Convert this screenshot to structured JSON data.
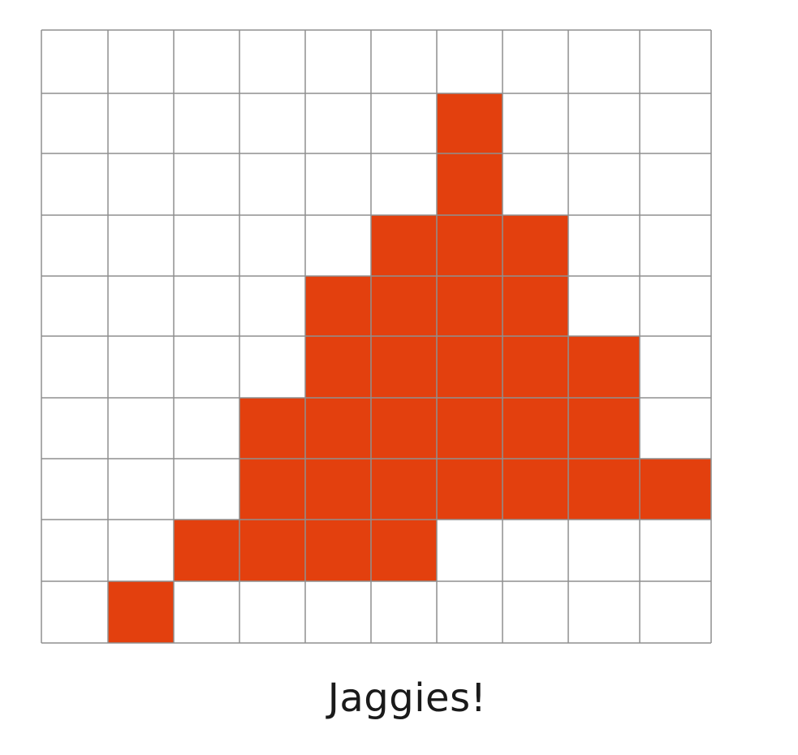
{
  "caption": "Jaggies!",
  "colors": {
    "fill": "#E3400E",
    "grid_line": "#8f8f8f",
    "background": "#ffffff",
    "text": "#1a1a1a"
  },
  "grid": {
    "rows": 10,
    "cols": 10,
    "filled_cells": [
      [
        1,
        6
      ],
      [
        2,
        6
      ],
      [
        3,
        5
      ],
      [
        3,
        6
      ],
      [
        3,
        7
      ],
      [
        4,
        4
      ],
      [
        4,
        5
      ],
      [
        4,
        6
      ],
      [
        4,
        7
      ],
      [
        5,
        4
      ],
      [
        5,
        5
      ],
      [
        5,
        6
      ],
      [
        5,
        7
      ],
      [
        5,
        8
      ],
      [
        6,
        3
      ],
      [
        6,
        4
      ],
      [
        6,
        5
      ],
      [
        6,
        6
      ],
      [
        6,
        7
      ],
      [
        6,
        8
      ],
      [
        7,
        3
      ],
      [
        7,
        4
      ],
      [
        7,
        5
      ],
      [
        7,
        6
      ],
      [
        7,
        7
      ],
      [
        7,
        8
      ],
      [
        7,
        9
      ],
      [
        8,
        2
      ],
      [
        8,
        3
      ],
      [
        8,
        4
      ],
      [
        8,
        5
      ],
      [
        9,
        1
      ]
    ]
  }
}
